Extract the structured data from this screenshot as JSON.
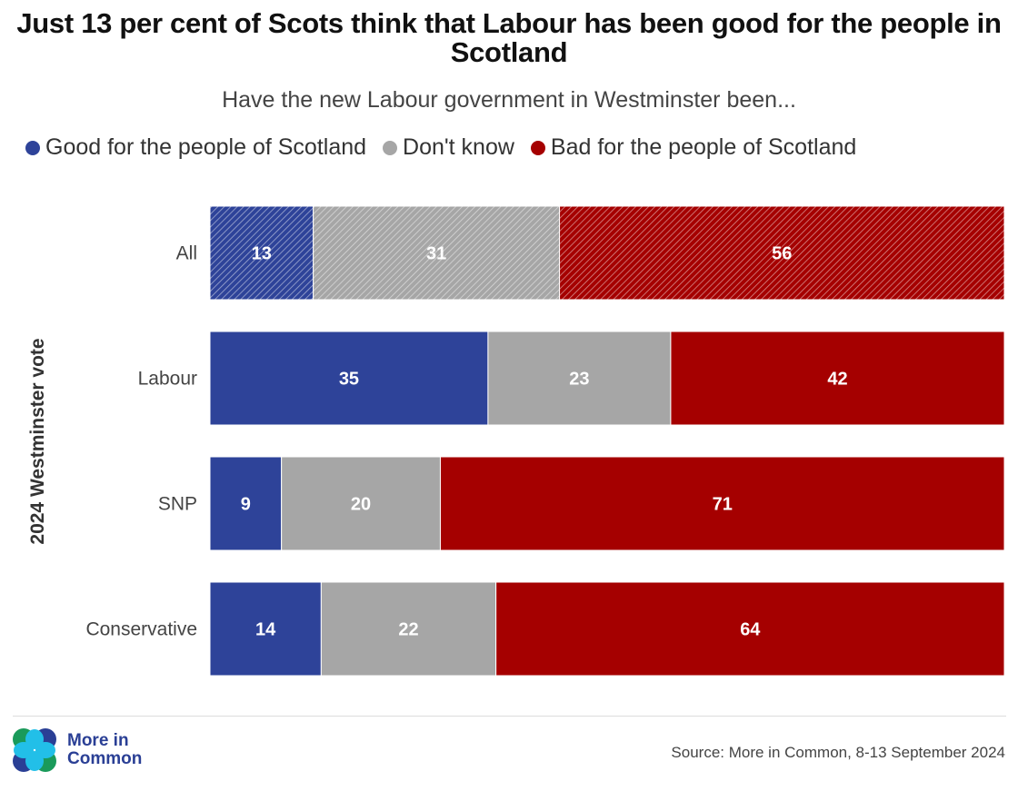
{
  "title": "Just 13 per cent of Scots think that Labour has been good for the people in Scotland",
  "subtitle": "Have the new Labour government in Westminster been...",
  "source": "Source: More in Common, 8-13 September 2024",
  "logo": {
    "line1": "More in",
    "line2": "Common",
    "icon": "more-in-common-logo-icon"
  },
  "colors": {
    "good": "#2e4399",
    "dont_know": "#a6a6a6",
    "bad": "#a50000"
  },
  "chart_data": {
    "type": "bar",
    "orientation": "horizontal",
    "stacked": true,
    "title": "Just 13 per cent of Scots think that Labour has been good for the people in Scotland",
    "subtitle": "Have the new Labour government in Westminster been...",
    "ylabel": "2024 Westminster vote",
    "xlabel": "",
    "xlim": [
      0,
      100
    ],
    "grid": false,
    "legend_position": "top-left",
    "categories": [
      "All",
      "Labour",
      "SNP",
      "Conservative"
    ],
    "hatched_categories": [
      "All"
    ],
    "series": [
      {
        "name": "Good for the people of Scotland",
        "color": "#2e4399",
        "values": [
          13,
          35,
          9,
          14
        ]
      },
      {
        "name": "Don't know",
        "color": "#a6a6a6",
        "values": [
          31,
          23,
          20,
          22
        ]
      },
      {
        "name": "Bad for the people of Scotland",
        "color": "#a50000",
        "values": [
          56,
          42,
          71,
          64
        ]
      }
    ]
  }
}
